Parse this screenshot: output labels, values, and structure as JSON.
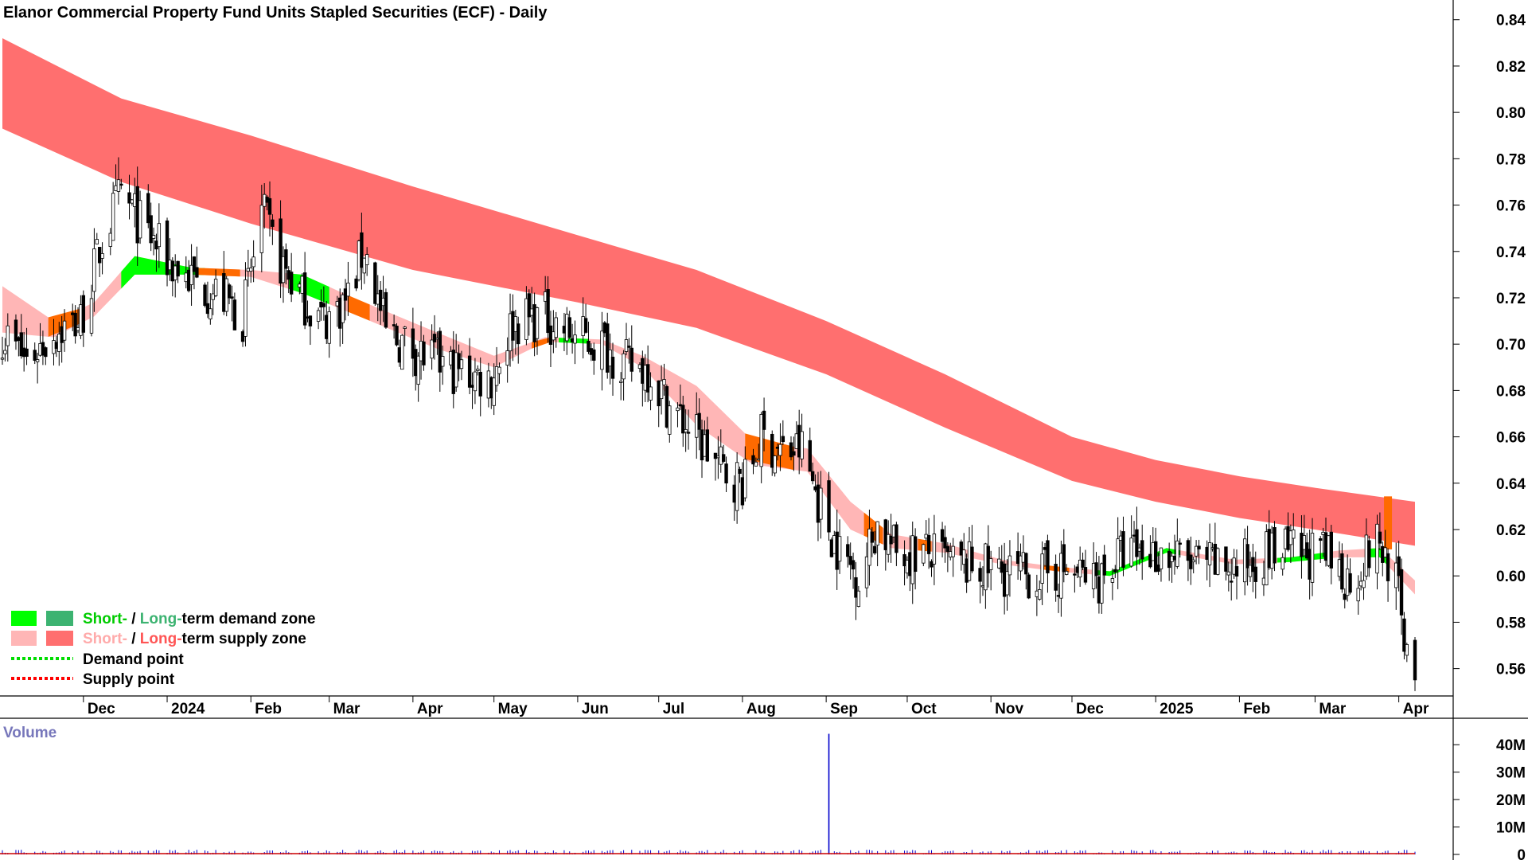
{
  "chart_data": [
    {
      "type": "candlestick",
      "title": "Elanor Commercial Property Fund Units Stapled Securities (ECF) - Daily",
      "y_ticks": [
        "0.84",
        "0.82",
        "0.80",
        "0.78",
        "0.76",
        "0.74",
        "0.72",
        "0.70",
        "0.68",
        "0.66",
        "0.64",
        "0.62",
        "0.60",
        "0.58",
        "0.56"
      ],
      "ylim": [
        0.553,
        0.843
      ],
      "x_ticks": [
        "Dec",
        "2024",
        "Feb",
        "Mar",
        "Apr",
        "May",
        "Jun",
        "Jul",
        "Aug",
        "Sep",
        "Oct",
        "Nov",
        "Dec",
        "2025",
        "Feb",
        "Mar",
        "Apr"
      ],
      "date_range": [
        "2023-11-01",
        "2025-04-07"
      ],
      "close_path": [
        [
          "2023-11-01",
          0.705
        ],
        [
          "2023-11-10",
          0.693
        ],
        [
          "2023-11-20",
          0.705
        ],
        [
          "2023-11-30",
          0.71
        ],
        [
          "2023-12-08",
          0.745
        ],
        [
          "2023-12-15",
          0.765
        ],
        [
          "2023-12-22",
          0.752
        ],
        [
          "2024-01-02",
          0.735
        ],
        [
          "2024-01-10",
          0.728
        ],
        [
          "2024-01-22",
          0.72
        ],
        [
          "2024-01-29",
          0.712
        ],
        [
          "2024-02-05",
          0.757
        ],
        [
          "2024-02-12",
          0.735
        ],
        [
          "2024-02-20",
          0.72
        ],
        [
          "2024-02-28",
          0.71
        ],
        [
          "2024-03-08",
          0.72
        ],
        [
          "2024-03-14",
          0.742
        ],
        [
          "2024-03-22",
          0.705
        ],
        [
          "2024-04-05",
          0.695
        ],
        [
          "2024-04-18",
          0.688
        ],
        [
          "2024-04-30",
          0.685
        ],
        [
          "2024-05-08",
          0.71
        ],
        [
          "2024-05-20",
          0.712
        ],
        [
          "2024-05-31",
          0.703
        ],
        [
          "2024-06-10",
          0.7
        ],
        [
          "2024-06-20",
          0.69
        ],
        [
          "2024-06-27",
          0.69
        ],
        [
          "2024-07-05",
          0.673
        ],
        [
          "2024-07-15",
          0.66
        ],
        [
          "2024-07-25",
          0.645
        ],
        [
          "2024-08-02",
          0.64
        ],
        [
          "2024-08-08",
          0.66
        ],
        [
          "2024-08-16",
          0.653
        ],
        [
          "2024-08-23",
          0.655
        ],
        [
          "2024-08-30",
          0.63
        ],
        [
          "2024-09-06",
          0.61
        ],
        [
          "2024-09-13",
          0.6
        ],
        [
          "2024-09-20",
          0.622
        ],
        [
          "2024-09-27",
          0.61
        ],
        [
          "2024-10-08",
          0.61
        ],
        [
          "2024-10-18",
          0.605
        ],
        [
          "2024-10-31",
          0.603
        ],
        [
          "2024-11-15",
          0.6
        ],
        [
          "2024-11-29",
          0.602
        ],
        [
          "2024-12-10",
          0.598
        ],
        [
          "2024-12-20",
          0.61
        ],
        [
          "2025-01-03",
          0.61
        ],
        [
          "2025-01-15",
          0.605
        ],
        [
          "2025-01-31",
          0.603
        ],
        [
          "2025-02-10",
          0.61
        ],
        [
          "2025-02-24",
          0.61
        ],
        [
          "2025-03-05",
          0.608
        ],
        [
          "2025-03-14",
          0.598
        ],
        [
          "2025-03-24",
          0.615
        ],
        [
          "2025-03-31",
          0.6
        ],
        [
          "2025-04-02",
          0.58
        ],
        [
          "2025-04-04",
          0.57
        ],
        [
          "2025-04-07",
          0.562
        ]
      ],
      "long_term_supply_zone": [
        [
          "2023-11-01",
          0.832,
          0.793
        ],
        [
          "2023-12-15",
          0.806,
          0.77
        ],
        [
          "2024-02-01",
          0.79,
          0.752
        ],
        [
          "2024-04-01",
          0.768,
          0.732
        ],
        [
          "2024-06-01",
          0.747,
          0.718
        ],
        [
          "2024-07-15",
          0.732,
          0.707
        ],
        [
          "2024-09-01",
          0.71,
          0.687
        ],
        [
          "2024-10-15",
          0.687,
          0.664
        ],
        [
          "2024-12-01",
          0.66,
          0.641
        ],
        [
          "2025-01-01",
          0.65,
          0.632
        ],
        [
          "2025-02-01",
          0.643,
          0.625
        ],
        [
          "2025-03-01",
          0.638,
          0.62
        ],
        [
          "2025-04-07",
          0.632,
          0.613
        ]
      ],
      "short_term_zone": [
        [
          "2023-11-01",
          0.725,
          0.705
        ],
        [
          "2023-11-20",
          0.71,
          0.703
        ],
        [
          "2023-12-05",
          0.718,
          0.712
        ],
        [
          "2023-12-20",
          0.738,
          0.73
        ],
        [
          "2024-01-10",
          0.733,
          0.73
        ],
        [
          "2024-02-01",
          0.732,
          0.729
        ],
        [
          "2024-02-20",
          0.73,
          0.722
        ],
        [
          "2024-03-10",
          0.72,
          0.713
        ],
        [
          "2024-04-10",
          0.705,
          0.698
        ],
        [
          "2024-05-01",
          0.695,
          0.69
        ],
        [
          "2024-05-20",
          0.703,
          0.701
        ],
        [
          "2024-06-10",
          0.702,
          0.7
        ],
        [
          "2024-06-25",
          0.695,
          0.69
        ],
        [
          "2024-07-15",
          0.682,
          0.665
        ],
        [
          "2024-08-05",
          0.658,
          0.648
        ],
        [
          "2024-08-25",
          0.655,
          0.645
        ],
        [
          "2024-09-10",
          0.632,
          0.62
        ],
        [
          "2024-09-25",
          0.618,
          0.612
        ],
        [
          "2024-10-15",
          0.614,
          0.61
        ],
        [
          "2024-11-05",
          0.607,
          0.605
        ],
        [
          "2024-11-25",
          0.604,
          0.602
        ],
        [
          "2024-12-15",
          0.602,
          0.6
        ],
        [
          "2025-01-05",
          0.612,
          0.61
        ],
        [
          "2025-01-30",
          0.607,
          0.605
        ],
        [
          "2025-02-20",
          0.608,
          0.606
        ],
        [
          "2025-03-10",
          0.611,
          0.608
        ],
        [
          "2025-03-25",
          0.612,
          0.608
        ],
        [
          "2025-04-07",
          0.598,
          0.592
        ]
      ],
      "legend": {
        "placement": "bottom-left",
        "items": [
          {
            "prefix": "Short-",
            "sep": " / ",
            "long": "Long-",
            "suffix": "term demand zone",
            "colors": [
              "#00ff00",
              "#3cb371"
            ]
          },
          {
            "prefix": "Short-",
            "sep": " / ",
            "long": "Long-",
            "suffix": "term supply zone",
            "colors": [
              "#ffb6b6",
              "#ff6f6f"
            ]
          },
          {
            "label": "Demand point",
            "color": "#00dd00"
          },
          {
            "label": "Supply point",
            "color": "#ff0000"
          }
        ]
      }
    },
    {
      "type": "bar",
      "title": "Volume",
      "y_ticks": [
        "40M",
        "30M",
        "20M",
        "10M",
        "0"
      ],
      "ylim": [
        0,
        45000000
      ],
      "spike": {
        "date": "2024-09-02",
        "value": 44000000
      },
      "typical_volume": 1000000
    }
  ],
  "colors": {
    "long_supply": "#ff6f6f",
    "short_supply": "#ffb6b6",
    "short_demand": "#00ff00",
    "long_demand": "#3cb371",
    "overlap": "#ff6a00",
    "candle": "#000000",
    "volume": "#0000cc",
    "volume_title": "#7777bb"
  }
}
